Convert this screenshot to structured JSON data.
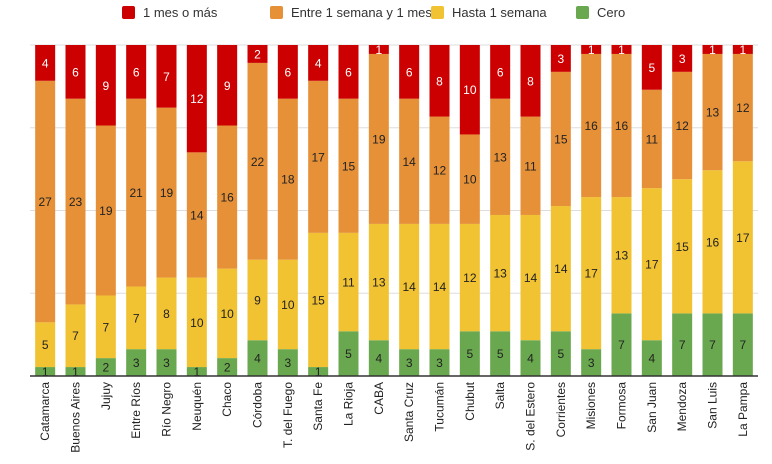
{
  "chart_data": {
    "type": "bar",
    "stacked": true,
    "percent": true,
    "title": "",
    "xlabel": "",
    "ylabel": "",
    "legend_position": "top",
    "categories": [
      "Catamarca",
      "Buenos Aires",
      "Jujuy",
      "Entre Ríos",
      "Río Negro",
      "Neuquén",
      "Chaco",
      "Córdoba",
      "T. del Fuego",
      "Santa Fe",
      "La Rioja",
      "CABA",
      "Santa Cruz",
      "Tucumán",
      "Chubut",
      "Salta",
      "S. del Estero",
      "Corrientes",
      "Misiones",
      "Formosa",
      "San Juan",
      "Mendoza",
      "San Luis",
      "La Pampa"
    ],
    "series": [
      {
        "name": "Cero",
        "color": "#6aa84f",
        "values": [
          1,
          1,
          2,
          3,
          3,
          1,
          2,
          4,
          3,
          1,
          5,
          4,
          3,
          3,
          5,
          5,
          4,
          5,
          3,
          7,
          4,
          7,
          7,
          7
        ]
      },
      {
        "name": "Hasta 1 semana",
        "color": "#f1c232",
        "values": [
          5,
          7,
          7,
          7,
          8,
          10,
          10,
          9,
          10,
          15,
          11,
          13,
          14,
          14,
          12,
          13,
          14,
          14,
          17,
          13,
          17,
          15,
          16,
          17
        ]
      },
      {
        "name": "Entre 1 semana y 1 mes",
        "color": "#e69138",
        "values": [
          27,
          23,
          19,
          21,
          19,
          14,
          16,
          22,
          18,
          17,
          15,
          19,
          14,
          12,
          10,
          13,
          11,
          15,
          16,
          16,
          11,
          12,
          13,
          12
        ]
      },
      {
        "name": "1 mes o más",
        "color": "#cc0000",
        "values": [
          4,
          6,
          9,
          6,
          7,
          12,
          9,
          2,
          6,
          4,
          6,
          1,
          6,
          8,
          10,
          6,
          8,
          3,
          1,
          1,
          5,
          3,
          1,
          1
        ]
      }
    ],
    "legend_order": [
      "1 mes o más",
      "Entre 1 semana y 1 mes",
      "Hasta 1 semana",
      "Cero"
    ],
    "gridlines": true
  }
}
